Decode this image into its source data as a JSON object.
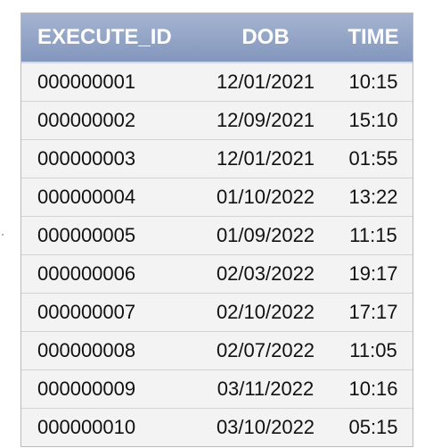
{
  "table": {
    "columns": [
      "EXECUTE_ID",
      "DOB",
      "TIME"
    ],
    "rows": [
      [
        "000000001",
        "12/01/2021",
        "10:15"
      ],
      [
        "000000002",
        "12/09/2021",
        "15:10"
      ],
      [
        "000000003",
        "12/01/2021",
        "01:55"
      ],
      [
        "000000004",
        "01/10/2022",
        "13:22"
      ],
      [
        "000000005",
        "01/09/2022",
        "11:15"
      ],
      [
        "000000006",
        "02/03/2022",
        "19:17"
      ],
      [
        "000000007",
        "02/10/2022",
        "17:17"
      ],
      [
        "000000008",
        "02/07/2022",
        "11:05"
      ],
      [
        "000000009",
        "03/11/2022",
        "10:16"
      ],
      [
        "000000010",
        "03/10/2022",
        "05:15"
      ]
    ]
  },
  "colors": {
    "header_top": "#a5b3d0",
    "header_bottom": "#8397bd",
    "header_text": "#ffffff",
    "row_background": "#f3f3f3",
    "row_border": "#d3d3d3"
  }
}
